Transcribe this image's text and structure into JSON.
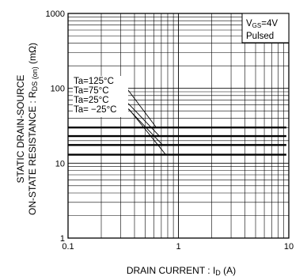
{
  "chart_data": {
    "type": "line",
    "xscale": "log",
    "yscale": "log",
    "xlim": [
      0.1,
      10
    ],
    "ylim": [
      1,
      1000
    ],
    "grid": true,
    "x_ticks": [
      "0.1",
      "1",
      "10"
    ],
    "y_ticks": [
      "1",
      "10",
      "100",
      "1000"
    ],
    "xlabel": {
      "main": "DRAIN  CURRENT : I",
      "sub": "D",
      "unit": " (A)"
    },
    "ylabel": {
      "line1": "STATIC  DRAIN-SOURCE",
      "line2_main": "ON-STATE  RESISTANCE : R",
      "line2_sub": "DS (on)",
      "line2_unit": " (mΩ)"
    },
    "conditions": {
      "vgs_main": "V",
      "vgs_sub": "GS",
      "vgs_val": "=4V",
      "mode": "Pulsed"
    },
    "series": [
      {
        "name": "Ta=125°C",
        "x": [
          0.1,
          9.5
        ],
        "y": [
          30,
          30
        ]
      },
      {
        "name": "Ta=75°C",
        "x": [
          0.1,
          9.5
        ],
        "y": [
          23,
          23
        ]
      },
      {
        "name": "Ta=25°C",
        "x": [
          0.1,
          9.5
        ],
        "y": [
          17.5,
          17.5
        ]
      },
      {
        "name": "Ta= −25°C",
        "x": [
          0.1,
          9.5
        ],
        "y": [
          13,
          13
        ]
      }
    ]
  }
}
